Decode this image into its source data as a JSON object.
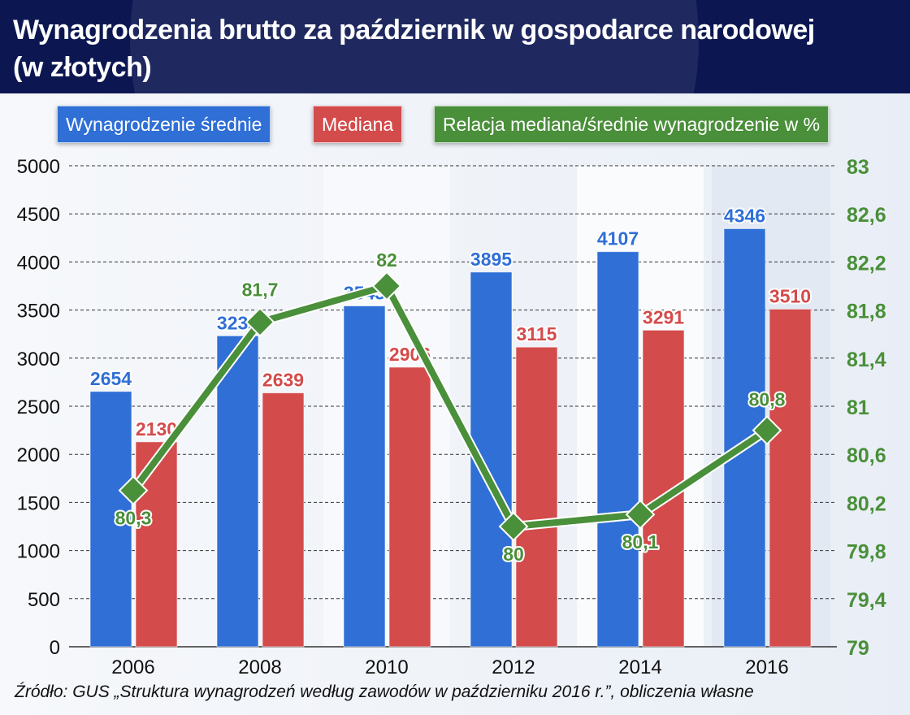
{
  "chart_data": {
    "type": "bar",
    "title": "Wynagrodzenia brutto za październik w gospodarce narodowej (w złotych)",
    "categories": [
      "2006",
      "2008",
      "2010",
      "2012",
      "2014",
      "2016"
    ],
    "series": [
      {
        "name": "Wynagrodzenie średnie",
        "type": "bar",
        "axis": "left",
        "color": "#2f6fd6",
        "values": [
          2654,
          3232,
          3543,
          3895,
          4107,
          4346
        ],
        "labels": [
          "2654",
          "3232",
          "3543",
          "3895",
          "4107",
          "4346"
        ]
      },
      {
        "name": "Mediana",
        "type": "bar",
        "axis": "left",
        "color": "#d44b4b",
        "values": [
          2130,
          2639,
          2906,
          3115,
          3291,
          3510
        ],
        "labels": [
          "2130",
          "2639",
          "2906",
          "3115",
          "3291",
          "3510"
        ]
      },
      {
        "name": "Relacja mediana/średnie wynagrodzenie w %",
        "type": "line",
        "axis": "right",
        "color": "#4a8f3a",
        "values": [
          80.3,
          81.7,
          82,
          80,
          80.1,
          80.8
        ],
        "labels": [
          "80,3",
          "81,7",
          "82",
          "80",
          "80,1",
          "80,8"
        ]
      }
    ],
    "left_axis": {
      "ylim": [
        0,
        5000
      ],
      "ticks": [
        "0",
        "500",
        "1000",
        "1500",
        "2000",
        "2500",
        "3000",
        "3500",
        "4000",
        "4500",
        "5000"
      ]
    },
    "right_axis": {
      "ylim": [
        79,
        83
      ],
      "ticks": [
        "79",
        "79,4",
        "79,8",
        "80,2",
        "80,6",
        "81",
        "81,4",
        "81,8",
        "82,2",
        "82,6",
        "83"
      ]
    },
    "grid": "horizontal dashed",
    "legend": "top"
  },
  "header": {
    "title_line1": "Wynagrodzenia brutto za październik w gospodarce narodowej",
    "title_line2": "(w złotych)"
  },
  "source": "Źródło: GUS „Struktura wynagrodzeń według zawodów w październiku 2016 r.”, obliczenia własne"
}
